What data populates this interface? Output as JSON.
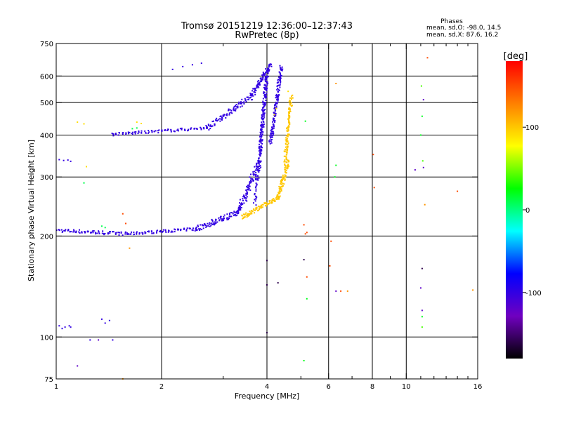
{
  "chart_data": {
    "type": "scatter",
    "title": "Tromsø 20151219 12:36:00–12:37:43",
    "subtitle": "RwPretec (8p)",
    "xlabel": "Frequency [MHz]",
    "ylabel": "Stationary phase Virtual Height [km]",
    "x_scale": "log",
    "y_scale": "log",
    "xlim": [
      1,
      16
    ],
    "ylim": [
      75,
      750
    ],
    "x_ticks": [
      1,
      2,
      4,
      6,
      8,
      10,
      16
    ],
    "x_tick_labels": [
      "1",
      "2",
      "4",
      "6",
      "8",
      "10",
      "16"
    ],
    "x_grid": [
      2,
      4,
      6,
      8,
      10
    ],
    "x_minor": [
      3,
      5,
      7,
      9,
      11,
      12,
      13,
      14,
      15
    ],
    "y_ticks": [
      75,
      100,
      200,
      300,
      400,
      500,
      600,
      750
    ],
    "y_tick_labels": [
      "75",
      "100",
      "200",
      "300",
      "400",
      "500",
      "600",
      "750"
    ],
    "y_grid": [
      100,
      200,
      300,
      400,
      500,
      600
    ],
    "grid": true,
    "stats": {
      "heading": "Phases",
      "line_o": "mean, sd,O: -98.0, 14.5",
      "line_x": "mean, sd,X:  87.6, 16.2"
    },
    "colorbar": {
      "label": "[deg]",
      "range": [
        -180,
        180
      ],
      "ticks": [
        100,
        0,
        -100
      ],
      "tick_labels": [
        "100",
        "0",
        "-100"
      ],
      "colors": [
        "#ff0000",
        "#ff8000",
        "#ffff00",
        "#00ff00",
        "#00ffff",
        "#0000ff",
        "#7000c0",
        "#000000"
      ]
    },
    "series": [
      {
        "phase": -100,
        "points": [
          [
            1.02,
            108
          ],
          [
            1.04,
            106
          ],
          [
            1.06,
            107
          ],
          [
            1.09,
            108
          ],
          [
            1.1,
            107
          ],
          [
            1.02,
            338
          ],
          [
            1.05,
            336
          ],
          [
            1.08,
            337
          ],
          [
            1.1,
            334
          ],
          [
            1.25,
            98
          ],
          [
            1.35,
            113
          ],
          [
            1.38,
            110
          ],
          [
            1.42,
            112
          ],
          [
            1.45,
            98
          ],
          [
            2.15,
            628
          ],
          [
            2.3,
            640
          ],
          [
            2.45,
            648
          ],
          [
            2.6,
            655
          ]
        ]
      },
      {
        "phase": -100,
        "trace": "E-layer",
        "from": [
          1.0,
          208
        ],
        "to": [
          1.6,
          203
        ],
        "n": 26,
        "jitter": 0.012
      },
      {
        "phase": -100,
        "trace": "F-O-lower",
        "from": [
          1.6,
          203
        ],
        "to": [
          2.5,
          210
        ],
        "n": 24,
        "jitter": 0.01
      },
      {
        "phase": -100,
        "trace": "F-O-rise",
        "from": [
          2.5,
          210
        ],
        "to": [
          3.3,
          235
        ],
        "n": 30,
        "jitter": 0.02
      },
      {
        "phase": -100,
        "trace": "F-O-cusp",
        "from": [
          3.3,
          235
        ],
        "to": [
          3.8,
          330
        ],
        "n": 36,
        "jitter": 0.03
      },
      {
        "phase": -100,
        "trace": "F-O-vert",
        "from": [
          3.8,
          330
        ],
        "to": [
          4.0,
          620
        ],
        "n": 46,
        "jitter": 0.02
      },
      {
        "phase": -100,
        "trace": "F2-lower",
        "from": [
          1.45,
          402
        ],
        "to": [
          2.7,
          420
        ],
        "n": 30,
        "jitter": 0.01
      },
      {
        "phase": -100,
        "trace": "F2-rise",
        "from": [
          2.7,
          420
        ],
        "to": [
          3.6,
          520
        ],
        "n": 30,
        "jitter": 0.02
      },
      {
        "phase": -100,
        "trace": "F2-vert",
        "from": [
          3.6,
          520
        ],
        "to": [
          4.1,
          650
        ],
        "n": 30,
        "jitter": 0.02
      },
      {
        "phase": -100,
        "trace": "F2-vert-b",
        "from": [
          4.1,
          380
        ],
        "to": [
          4.4,
          640
        ],
        "n": 46,
        "jitter": 0.02
      },
      {
        "phase": -100,
        "trace": "inner",
        "from": [
          3.7,
          250
        ],
        "to": [
          4.0,
          600
        ],
        "n": 36,
        "jitter": 0.02
      },
      {
        "phase": 100,
        "trace": "X-lower",
        "from": [
          3.4,
          228
        ],
        "to": [
          4.3,
          260
        ],
        "n": 30,
        "jitter": 0.015
      },
      {
        "phase": 100,
        "trace": "X-rise",
        "from": [
          4.3,
          260
        ],
        "to": [
          4.6,
          330
        ],
        "n": 30,
        "jitter": 0.02
      },
      {
        "phase": 100,
        "trace": "X-vert",
        "from": [
          4.5,
          330
        ],
        "to": [
          4.7,
          520
        ],
        "n": 36,
        "jitter": 0.02
      },
      {
        "phase": 90,
        "points": [
          [
            1.15,
            437
          ],
          [
            1.2,
            432
          ],
          [
            1.7,
            437
          ],
          [
            1.75,
            433
          ],
          [
            1.22,
            322
          ],
          [
            4.2,
            460
          ],
          [
            4.25,
            480
          ],
          [
            4.6,
            540
          ]
        ]
      },
      {
        "phase": 10,
        "points": [
          [
            1.35,
            214
          ],
          [
            1.38,
            212
          ],
          [
            1.65,
            418
          ],
          [
            1.7,
            420
          ],
          [
            1.2,
            288
          ]
        ]
      },
      {
        "phase": 150,
        "points": [
          [
            1.55,
            233
          ],
          [
            1.58,
            218
          ],
          [
            5.1,
            216
          ],
          [
            5.15,
            203
          ],
          [
            5.2,
            151
          ],
          [
            5.2,
            205
          ],
          [
            6.05,
            163
          ],
          [
            6.1,
            193
          ],
          [
            6.5,
            137
          ],
          [
            8.1,
            279
          ],
          [
            8.05,
            350
          ],
          [
            11.5,
            680
          ],
          [
            14.0,
            272
          ]
        ]
      },
      {
        "phase": 120,
        "points": [
          [
            1.62,
            184
          ],
          [
            1.55,
            75
          ],
          [
            6.3,
            570
          ],
          [
            6.8,
            137
          ],
          [
            11.3,
            248
          ],
          [
            15.5,
            138
          ]
        ]
      },
      {
        "phase": -120,
        "points": [
          [
            1.15,
            82
          ],
          [
            1.32,
            98
          ],
          [
            6.3,
            137
          ],
          [
            10.6,
            315
          ],
          [
            11.0,
            140
          ],
          [
            11.1,
            120
          ],
          [
            11.2,
            320
          ],
          [
            11.2,
            510
          ]
        ]
      },
      {
        "phase": 20,
        "points": [
          [
            5.1,
            85
          ],
          [
            5.2,
            130
          ],
          [
            5.15,
            440
          ],
          [
            6.25,
            300
          ],
          [
            6.3,
            325
          ],
          [
            11.1,
            115
          ],
          [
            11.0,
            400
          ],
          [
            11.1,
            455
          ]
        ]
      },
      {
        "phase": -160,
        "points": [
          [
            4.0,
            169
          ],
          [
            4.0,
            143
          ],
          [
            4.0,
            103
          ],
          [
            4.3,
            145
          ],
          [
            5.1,
            170
          ],
          [
            11.1,
            160
          ]
        ]
      },
      {
        "phase": 40,
        "points": [
          [
            11.15,
            335
          ],
          [
            11.1,
            107
          ],
          [
            11.05,
            560
          ]
        ]
      }
    ]
  }
}
